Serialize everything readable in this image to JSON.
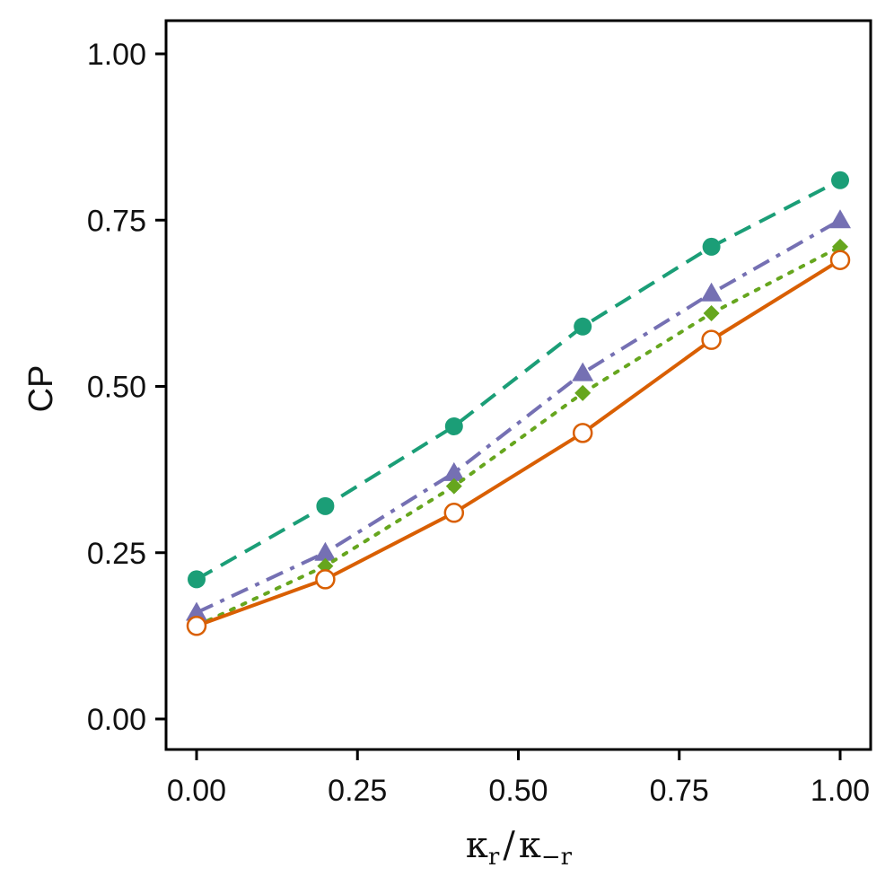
{
  "chart_data": {
    "type": "line",
    "title": "",
    "xlabel": "κr / κ−r",
    "xlabel_parts": {
      "kappa": "κ",
      "sub_r": "r",
      "slash": "/",
      "sub_neg_r": "−r"
    },
    "ylabel": "CP",
    "xlim": [
      -0.0,
      1.0
    ],
    "ylim": [
      0.0,
      1.0
    ],
    "x": [
      0.0,
      0.2,
      0.4,
      0.6,
      0.8,
      1.0
    ],
    "x_ticks": [
      0.0,
      0.25,
      0.5,
      0.75,
      1.0
    ],
    "x_tick_labels": [
      "0.00",
      "0.25",
      "0.50",
      "0.75",
      "1.00"
    ],
    "y_ticks": [
      0.0,
      0.25,
      0.5,
      0.75,
      1.0
    ],
    "y_tick_labels": [
      "0.00",
      "0.25",
      "0.50",
      "0.75",
      "1.00"
    ],
    "grid": false,
    "legend": "none",
    "series": [
      {
        "name": "series-1",
        "values": [
          0.21,
          0.32,
          0.44,
          0.59,
          0.71,
          0.81
        ],
        "color": "#1b9e77",
        "line": "dashed",
        "marker": "circle-filled"
      },
      {
        "name": "series-2",
        "values": [
          0.16,
          0.25,
          0.37,
          0.52,
          0.64,
          0.75
        ],
        "color": "#7570b3",
        "line": "dash-dot",
        "marker": "triangle"
      },
      {
        "name": "series-3",
        "values": [
          0.14,
          0.23,
          0.35,
          0.49,
          0.61,
          0.71
        ],
        "color": "#66a61e",
        "line": "dotted",
        "marker": "diamond"
      },
      {
        "name": "series-4",
        "values": [
          0.14,
          0.21,
          0.31,
          0.43,
          0.57,
          0.69
        ],
        "color": "#d95f02",
        "line": "solid",
        "marker": "circle-open"
      }
    ]
  }
}
